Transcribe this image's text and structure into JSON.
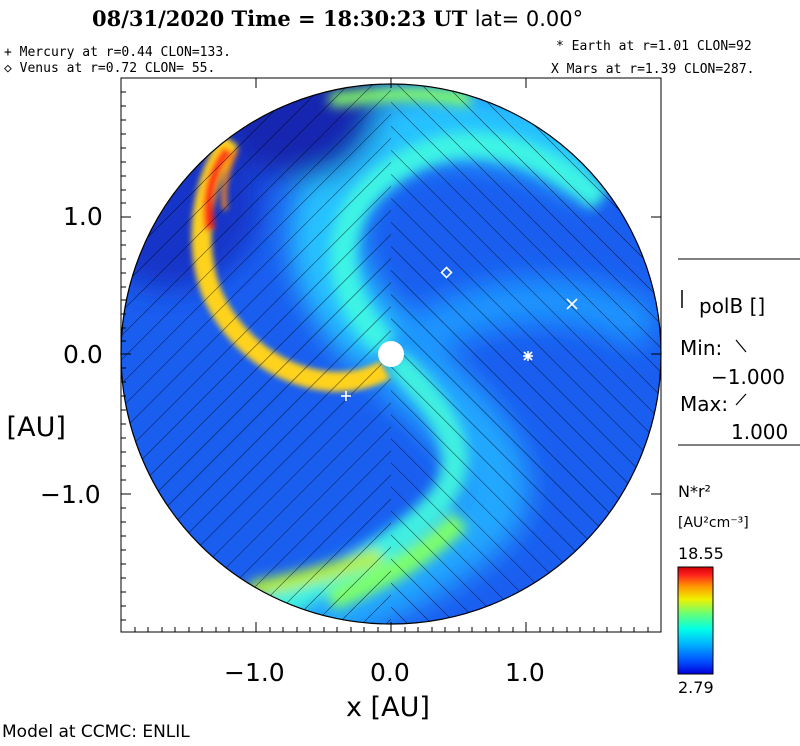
{
  "header": {
    "title_date_time": "08/31/2020 Time = 18:30:23 UT",
    "title_lat": "lat= 0.00°"
  },
  "planets": {
    "mercury": "+ Mercury at r=0.44 CLON=133.",
    "venus": "◇ Venus at r=0.72 CLON= 55.",
    "earth": "* Earth at  r=1.01 CLON=92",
    "mars": "X Mars at r=1.39 CLON=287."
  },
  "axes": {
    "x_label": "x [AU]",
    "y_label": "y [AU]",
    "x_ticks": [
      "−1.0",
      "0.0",
      "1.0"
    ],
    "y_ticks": [
      "1.0",
      "0.0",
      "−1.0"
    ]
  },
  "polarity": {
    "label": "polB []",
    "min_label": "Min:",
    "min_value": "−1.000",
    "max_label": "Max:",
    "max_value": "1.000"
  },
  "colorbar": {
    "quantity": "N*r²",
    "units": "[AU²cm⁻³]",
    "max": "18.55",
    "min": "2.79",
    "colors": [
      "#0000d8",
      "#0050ff",
      "#00b4ff",
      "#00ffe6",
      "#64ff78",
      "#f0f000",
      "#ff9600",
      "#ff1e1e",
      "#d20000"
    ]
  },
  "footer": {
    "credit": "Model at CCMC: ENLIL"
  }
}
